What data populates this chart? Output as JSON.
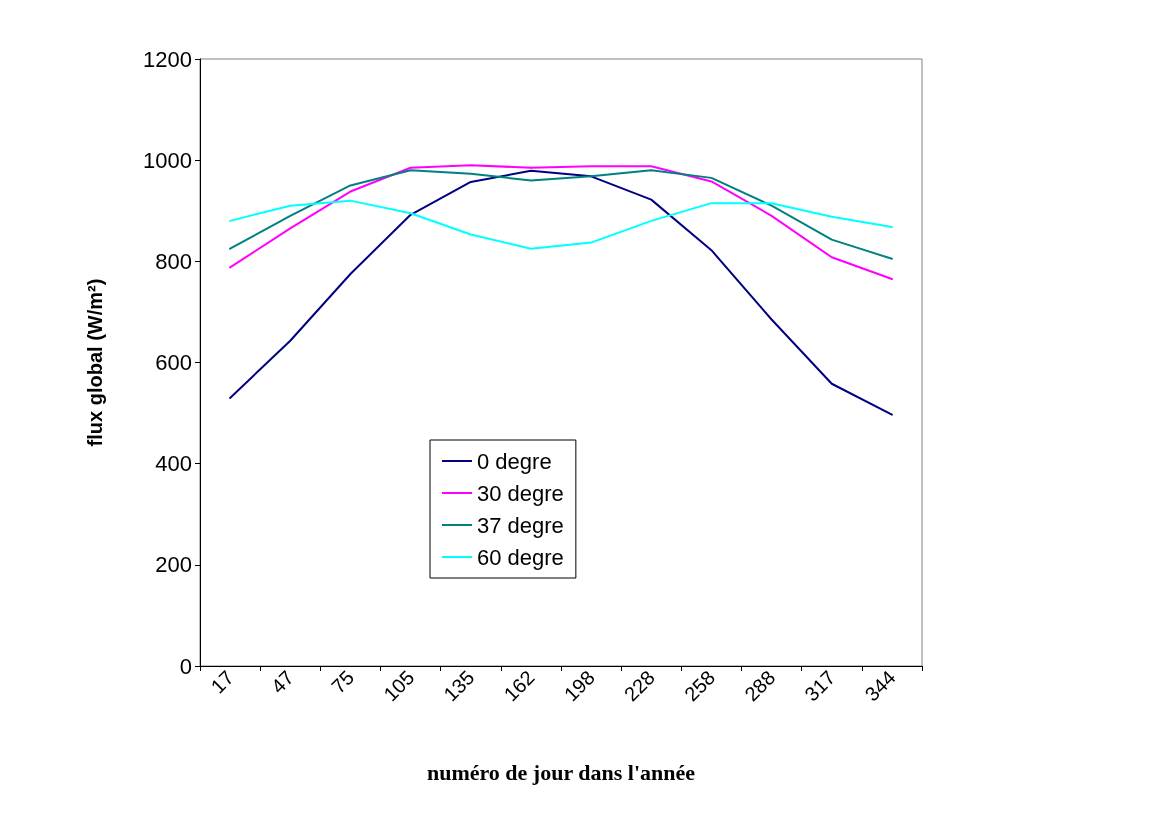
{
  "chart_data": {
    "type": "line",
    "xlabel": "numéro de jour dans l'année",
    "ylabel": "flux global (W/m²)",
    "categories": [
      "17",
      "47",
      "75",
      "105",
      "135",
      "162",
      "198",
      "228",
      "258",
      "288",
      "317",
      "344"
    ],
    "series": [
      {
        "name": "0 degre",
        "color": "#000080",
        "values": [
          530,
          643,
          775,
          892,
          957,
          979,
          968,
          922,
          822,
          685,
          558,
          497
        ]
      },
      {
        "name": "30 degre",
        "color": "#ff00ff",
        "values": [
          788,
          865,
          938,
          985,
          990,
          985,
          988,
          988,
          958,
          890,
          808,
          765
        ]
      },
      {
        "name": "37 degre",
        "color": "#008080",
        "values": [
          825,
          890,
          950,
          980,
          973,
          960,
          968,
          980,
          965,
          910,
          843,
          805
        ]
      },
      {
        "name": "60 degre",
        "color": "#00ffff",
        "values": [
          880,
          910,
          920,
          895,
          853,
          825,
          837,
          880,
          915,
          915,
          888,
          868
        ]
      }
    ],
    "ylim": [
      0,
      1200
    ],
    "yticks": [
      0,
      200,
      400,
      600,
      800,
      1000,
      1200
    ],
    "grid": false,
    "legend": "bottom",
    "marker": "none",
    "line_style": "solid"
  }
}
